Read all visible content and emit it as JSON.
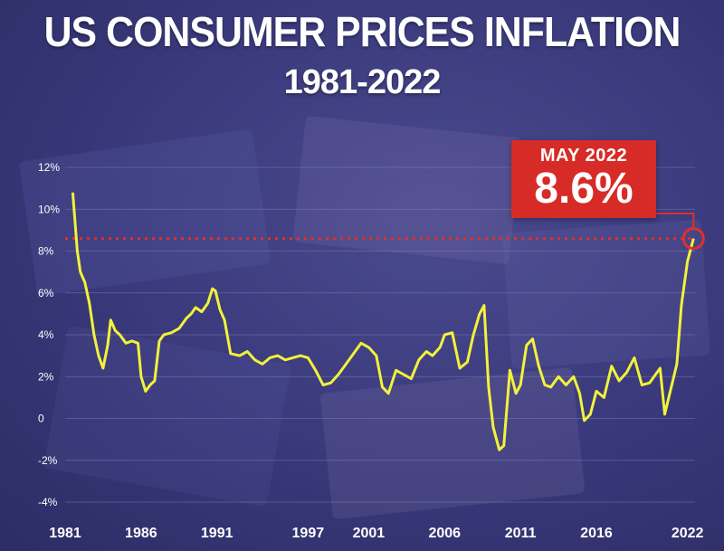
{
  "title": "US CONSUMER PRICES INFLATION",
  "subtitle": "1981-2022",
  "callout": {
    "label": "MAY 2022",
    "value": "8.6%"
  },
  "colors": {
    "line": "#f2f23a",
    "reference": "#e0302a",
    "callout_bg": "#d62b27",
    "grid": "#8a8ac0"
  },
  "chart_data": {
    "type": "line",
    "title": "US CONSUMER PRICES INFLATION",
    "subtitle": "1981-2022",
    "xlabel": "",
    "ylabel": "",
    "y_tick_labels": [
      "12%",
      "10%",
      "8%",
      "6%",
      "4%",
      "2%",
      "0",
      "-2%",
      "-4%"
    ],
    "y_tick_values": [
      12,
      10,
      8,
      6,
      4,
      2,
      0,
      -2,
      -4
    ],
    "x_tick_labels": [
      "1981",
      "1986",
      "1991",
      "1997",
      "2001",
      "2006",
      "2011",
      "2016",
      "2022"
    ],
    "x_tick_values": [
      1981,
      1986,
      1991,
      1997,
      2001,
      2006,
      2011,
      2016,
      2022
    ],
    "xlim": [
      1981,
      2022.5
    ],
    "ylim": [
      -4,
      12
    ],
    "grid": true,
    "reference_line": {
      "y": 8.6,
      "style": "dotted"
    },
    "annotation": {
      "x": 2022.4,
      "y": 8.6,
      "text": "MAY 2022 8.6%"
    },
    "series": [
      {
        "x": [
          1981.5,
          1981.8,
          1982.0,
          1982.3,
          1982.6,
          1982.9,
          1983.2,
          1983.5,
          1983.8,
          1984.0,
          1984.3,
          1984.6,
          1985.0,
          1985.4,
          1985.8,
          1986.0,
          1986.3,
          1986.6,
          1986.9,
          1987.2,
          1987.5,
          1988.0,
          1988.5,
          1989.0,
          1989.3,
          1989.6,
          1990.0,
          1990.4,
          1990.7,
          1990.9,
          1991.2,
          1991.5,
          1991.9,
          1992.5,
          1993.0,
          1993.5,
          1994.0,
          1994.5,
          1995.0,
          1995.5,
          1996.0,
          1996.5,
          1997.0,
          1997.5,
          1998.0,
          1998.5,
          1999.0,
          1999.5,
          2000.0,
          2000.5,
          2001.0,
          2001.5,
          2001.9,
          2002.3,
          2002.8,
          2003.3,
          2003.8,
          2004.3,
          2004.8,
          2005.2,
          2005.7,
          2006.0,
          2006.5,
          2007.0,
          2007.5,
          2007.9,
          2008.3,
          2008.6,
          2008.9,
          2009.2,
          2009.6,
          2009.9,
          2010.3,
          2010.7,
          2011.0,
          2011.4,
          2011.8,
          2012.2,
          2012.6,
          2013.0,
          2013.5,
          2014.0,
          2014.5,
          2014.9,
          2015.2,
          2015.6,
          2016.0,
          2016.5,
          2017.0,
          2017.5,
          2018.0,
          2018.5,
          2019.0,
          2019.5,
          2019.9,
          2020.2,
          2020.5,
          2020.9,
          2021.3,
          2021.6,
          2022.0,
          2022.4
        ],
        "y": [
          10.8,
          8.0,
          7.0,
          6.5,
          5.5,
          4.0,
          3.0,
          2.4,
          3.5,
          4.7,
          4.2,
          4.0,
          3.6,
          3.7,
          3.6,
          2.0,
          1.3,
          1.6,
          1.8,
          3.7,
          4.0,
          4.1,
          4.3,
          4.8,
          5.0,
          5.3,
          5.1,
          5.5,
          6.2,
          6.1,
          5.2,
          4.7,
          3.1,
          3.0,
          3.2,
          2.8,
          2.6,
          2.9,
          3.0,
          2.8,
          2.9,
          3.0,
          2.9,
          2.3,
          1.6,
          1.7,
          2.1,
          2.6,
          3.1,
          3.6,
          3.4,
          3.0,
          1.5,
          1.2,
          2.3,
          2.1,
          1.9,
          2.8,
          3.2,
          3.0,
          3.4,
          4.0,
          4.1,
          2.4,
          2.7,
          4.0,
          5.0,
          5.4,
          1.5,
          -0.4,
          -1.5,
          -1.3,
          2.3,
          1.2,
          1.6,
          3.5,
          3.8,
          2.5,
          1.6,
          1.5,
          2.0,
          1.6,
          2.0,
          1.2,
          -0.1,
          0.2,
          1.3,
          1.0,
          2.5,
          1.8,
          2.2,
          2.9,
          1.6,
          1.7,
          2.1,
          2.4,
          0.2,
          1.4,
          2.6,
          5.4,
          7.5,
          8.6
        ]
      }
    ]
  }
}
